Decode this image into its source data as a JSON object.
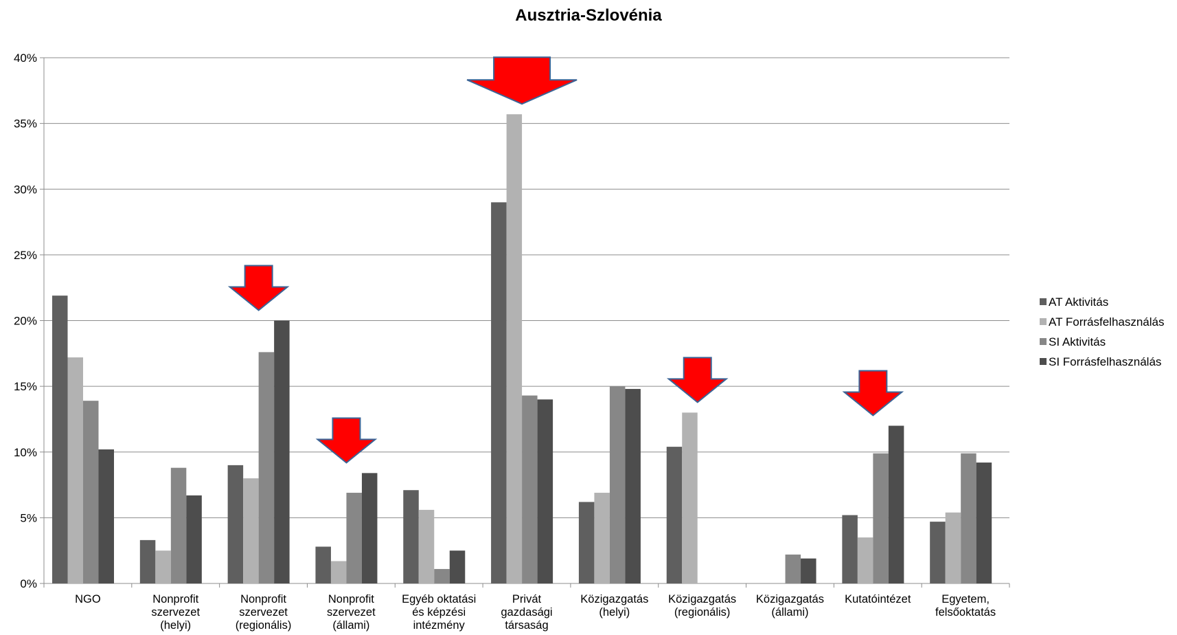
{
  "chart_data": {
    "type": "bar",
    "title": "Ausztria-Szlovénia",
    "xlabel": "",
    "ylabel": "",
    "ylim": [
      0,
      40
    ],
    "yticks": [
      0,
      5,
      10,
      15,
      20,
      25,
      30,
      35,
      40
    ],
    "ytick_labels": [
      "0%",
      "5%",
      "10%",
      "15%",
      "20%",
      "25%",
      "30%",
      "35%",
      "40%"
    ],
    "grid": true,
    "legend_position": "right",
    "categories": [
      [
        "NGO"
      ],
      [
        "Nonprofit",
        "szervezet",
        "(helyi)"
      ],
      [
        "Nonprofit",
        "szervezet",
        "(regionális)"
      ],
      [
        "Nonprofit",
        "szervezet",
        "(állami)"
      ],
      [
        "Egyéb oktatási",
        "és képzési",
        "intézmény"
      ],
      [
        "Privát",
        "gazdasági",
        "társaság"
      ],
      [
        "Közigazgatás",
        "(helyi)"
      ],
      [
        "Közigazgatás",
        "(regionális)"
      ],
      [
        "Közigazgatás",
        "(állami)"
      ],
      [
        "Kutatóintézet"
      ],
      [
        "Egyetem,",
        "felsőoktatás"
      ]
    ],
    "series": [
      {
        "name": "AT Aktivitás",
        "color": "#5f5f5f",
        "values": [
          21.9,
          3.3,
          9.0,
          2.8,
          7.1,
          29.0,
          6.2,
          10.4,
          0,
          5.2,
          4.7
        ]
      },
      {
        "name": "AT Forrásfelhasználás",
        "color": "#b2b2b2",
        "values": [
          17.2,
          2.5,
          8.0,
          1.7,
          5.6,
          35.7,
          6.9,
          13.0,
          0,
          3.5,
          5.4
        ]
      },
      {
        "name": "SI Aktivitás",
        "color": "#878787",
        "values": [
          13.9,
          8.8,
          17.6,
          6.9,
          1.1,
          14.3,
          15.0,
          0,
          2.2,
          9.9,
          9.9
        ]
      },
      {
        "name": "SI Forrásfelhasználás",
        "color": "#4d4d4d",
        "values": [
          10.2,
          6.7,
          20.0,
          8.4,
          2.5,
          14.0,
          14.8,
          0,
          1.9,
          12.0,
          9.2
        ]
      }
    ],
    "annotations": {
      "type": "down-arrow",
      "color": "#ff0000",
      "stroke": "#3b6496",
      "categories": [
        2,
        3,
        5,
        7,
        9
      ]
    }
  }
}
